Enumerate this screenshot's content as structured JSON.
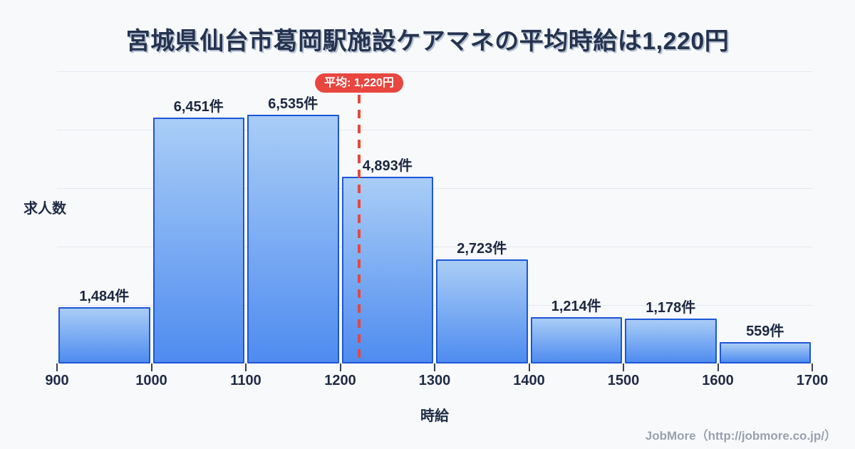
{
  "title": "宮城県仙台市葛岡駅施設ケアマネの平均時給は1,220円",
  "average_badge": "平均: 1,220円",
  "footer": "JobMore（http://jobmore.co.jp/）",
  "chart_data": {
    "type": "bar",
    "subtype": "histogram",
    "title": "宮城県仙台市葛岡駅施設ケアマネの平均時給は1,220円",
    "xlabel": "時給",
    "ylabel": "求人数",
    "bin_edges": [
      900,
      1000,
      1100,
      1200,
      1300,
      1400,
      1500,
      1600,
      1700
    ],
    "x_tick_labels": [
      "900",
      "1000",
      "1100",
      "1200",
      "1300",
      "1400",
      "1500",
      "1600",
      "1700"
    ],
    "values": [
      1484,
      6451,
      6535,
      4893,
      2723,
      1214,
      1178,
      559
    ],
    "value_labels": [
      "1,484件",
      "6,451件",
      "6,535件",
      "4,893件",
      "2,723件",
      "1,214件",
      "1,178件",
      "559件"
    ],
    "average": 1220,
    "average_label": "平均: 1,220円",
    "xlim": [
      900,
      1700
    ],
    "ylim": [
      0,
      7670
    ],
    "gridline_count": 5,
    "grid": "horizontal",
    "legend": "none",
    "colors": {
      "background": "#F8F9FB",
      "title_text": "#25334F",
      "bar_border": "#1E56D6",
      "bar_fill_top": "#A9CDF6",
      "bar_fill_bottom": "#4F8CF0",
      "average_red": "#E8463F",
      "grid_line": "#E4E7F0",
      "axis_text": "#1F2B45",
      "footer_gray": "#9AA1AC"
    }
  }
}
